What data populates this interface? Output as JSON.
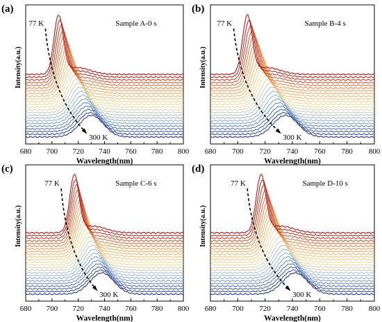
{
  "chart_data": [
    {
      "type": "line",
      "panel_label": "(a)",
      "sample": "Sample A-0 s",
      "xlabel": "Wavelength(nm)",
      "ylabel": "Intensity(a.u.)",
      "xlim": [
        680,
        800
      ],
      "xticks": [
        680,
        700,
        720,
        740,
        760,
        780,
        800
      ],
      "grid": false,
      "y_ticks_shown": false,
      "series_count": 24,
      "temperature_range_K": [
        77,
        300
      ],
      "annotations": {
        "low_temp": "77 K",
        "high_temp": "300 K"
      },
      "peak_low_temp_nm": 705,
      "peak_high_temp_nm": 730,
      "colormap": [
        "#2a3e8c",
        "#8fb3dd",
        "#f1e2a0",
        "#f0a05a",
        "#b01818"
      ]
    },
    {
      "type": "line",
      "panel_label": "(b)",
      "sample": "Sample B-4 s",
      "xlabel": "Wavelength(nm)",
      "ylabel": "Intensity(a.u.)",
      "xlim": [
        680,
        800
      ],
      "xticks": [
        680,
        700,
        720,
        740,
        760,
        780,
        800
      ],
      "grid": false,
      "y_ticks_shown": false,
      "series_count": 24,
      "temperature_range_K": [
        77,
        300
      ],
      "annotations": {
        "low_temp": "77 K",
        "high_temp": "300 K"
      },
      "peak_low_temp_nm": 707,
      "peak_high_temp_nm": 735,
      "colormap": [
        "#2a3e8c",
        "#8fb3dd",
        "#f1e2a0",
        "#f0a05a",
        "#b01818"
      ]
    },
    {
      "type": "line",
      "panel_label": "(c)",
      "sample": "Sample C-6 s",
      "xlabel": "Wavelength(nm)",
      "ylabel": "Intensity(a.u.)",
      "xlim": [
        680,
        800
      ],
      "xticks": [
        680,
        700,
        720,
        740,
        760,
        780,
        800
      ],
      "grid": false,
      "y_ticks_shown": false,
      "series_count": 24,
      "temperature_range_K": [
        77,
        300
      ],
      "annotations": {
        "low_temp": "77 K",
        "high_temp": "300 K"
      },
      "peak_low_temp_nm": 717,
      "peak_high_temp_nm": 738,
      "colormap": [
        "#2a3e8c",
        "#8fb3dd",
        "#f1e2a0",
        "#f0a05a",
        "#b01818"
      ]
    },
    {
      "type": "line",
      "panel_label": "(d)",
      "sample": "Sample D-10 s",
      "xlabel": "Wavelength(nm)",
      "ylabel": "Intensity(a.u.)",
      "xlim": [
        680,
        800
      ],
      "xticks": [
        680,
        700,
        720,
        740,
        760,
        780,
        800
      ],
      "grid": false,
      "y_ticks_shown": false,
      "series_count": 24,
      "temperature_range_K": [
        77,
        300
      ],
      "annotations": {
        "low_temp": "77 K",
        "high_temp": "300 K"
      },
      "peak_low_temp_nm": 717,
      "peak_high_temp_nm": 742,
      "colormap": [
        "#2a3e8c",
        "#8fb3dd",
        "#f1e2a0",
        "#f0a05a",
        "#b01818"
      ]
    }
  ]
}
